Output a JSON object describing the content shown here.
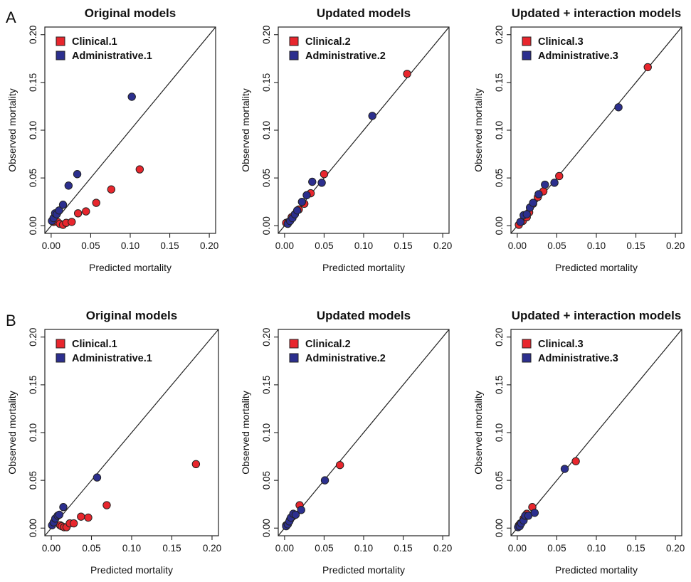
{
  "figure": {
    "panel_labels": [
      "A",
      "B"
    ]
  },
  "colors": {
    "clinical": "#e8262d",
    "administrative": "#2c2f8e",
    "stroke": "#222222"
  },
  "chart_data": [
    {
      "type": "scatter",
      "title": "Original models",
      "xlabel": "Predicted mortality",
      "ylabel": "Observed mortality",
      "xlim": [
        0,
        0.2
      ],
      "ylim": [
        0,
        0.2
      ],
      "xticks": [
        "0.00",
        "0.05",
        "0.10",
        "0.15",
        "0.20"
      ],
      "yticks": [
        "0.00",
        "0.05",
        "0.10",
        "0.15",
        "0.20"
      ],
      "reference_line": "y = x",
      "legend": "top-left",
      "series": [
        {
          "name": "Clinical.1",
          "color": "#e8262d",
          "x": [
            0.003,
            0.008,
            0.011,
            0.015,
            0.019,
            0.026,
            0.034,
            0.044,
            0.057,
            0.076,
            0.112
          ],
          "y": [
            0.004,
            0.004,
            0.002,
            0.001,
            0.003,
            0.004,
            0.013,
            0.015,
            0.024,
            0.038,
            0.059
          ]
        },
        {
          "name": "Administrative.1",
          "color": "#2c2f8e",
          "x": [
            0.001,
            0.003,
            0.005,
            0.007,
            0.01,
            0.015,
            0.022,
            0.033,
            0.102
          ],
          "y": [
            0.005,
            0.008,
            0.013,
            0.012,
            0.016,
            0.022,
            0.042,
            0.054,
            0.135
          ]
        }
      ]
    },
    {
      "type": "scatter",
      "title": "Updated models",
      "xlabel": "Predicted mortality",
      "ylabel": "Observed mortality",
      "xlim": [
        0,
        0.2
      ],
      "ylim": [
        0,
        0.2
      ],
      "xticks": [
        "0.00",
        "0.05",
        "0.10",
        "0.15",
        "0.20"
      ],
      "yticks": [
        "0.00",
        "0.05",
        "0.10",
        "0.15",
        "0.20"
      ],
      "reference_line": "y = x",
      "legend": "top-left",
      "series": [
        {
          "name": "Clinical.2",
          "color": "#e8262d",
          "x": [
            0.002,
            0.005,
            0.009,
            0.013,
            0.018,
            0.025,
            0.033,
            0.05,
            0.155
          ],
          "y": [
            0.003,
            0.004,
            0.009,
            0.012,
            0.017,
            0.023,
            0.034,
            0.054,
            0.159
          ]
        },
        {
          "name": "Administrative.2",
          "color": "#2c2f8e",
          "x": [
            0.004,
            0.007,
            0.01,
            0.013,
            0.016,
            0.022,
            0.028,
            0.035,
            0.047,
            0.111
          ],
          "y": [
            0.002,
            0.005,
            0.008,
            0.012,
            0.016,
            0.025,
            0.032,
            0.046,
            0.045,
            0.115
          ]
        }
      ]
    },
    {
      "type": "scatter",
      "title": "Updated + interaction models",
      "xlabel": "Predicted mortality",
      "ylabel": "Observed mortality",
      "xlim": [
        0,
        0.2
      ],
      "ylim": [
        0,
        0.2
      ],
      "xticks": [
        "0.00",
        "0.05",
        "0.10",
        "0.15",
        "0.20"
      ],
      "yticks": [
        "0.00",
        "0.05",
        "0.10",
        "0.15",
        "0.20"
      ],
      "reference_line": "y = x",
      "legend": "top-left",
      "series": [
        {
          "name": "Clinical.3",
          "color": "#e8262d",
          "x": [
            0.002,
            0.007,
            0.012,
            0.015,
            0.02,
            0.026,
            0.033,
            0.053,
            0.165
          ],
          "y": [
            0.001,
            0.005,
            0.009,
            0.014,
            0.023,
            0.03,
            0.036,
            0.052,
            0.166
          ]
        },
        {
          "name": "Administrative.3",
          "color": "#2c2f8e",
          "x": [
            0.004,
            0.008,
            0.012,
            0.016,
            0.02,
            0.027,
            0.035,
            0.047,
            0.128
          ],
          "y": [
            0.004,
            0.011,
            0.012,
            0.019,
            0.024,
            0.033,
            0.043,
            0.045,
            0.124
          ]
        }
      ]
    },
    {
      "type": "scatter",
      "title": "Original models",
      "xlabel": "Predicted mortality",
      "ylabel": "Observed mortality",
      "xlim": [
        0,
        0.2
      ],
      "ylim": [
        0,
        0.2
      ],
      "xticks": [
        "0.00",
        "0.05",
        "0.10",
        "0.15",
        "0.20"
      ],
      "yticks": [
        "0.00",
        "0.05",
        "0.10",
        "0.15",
        "0.20"
      ],
      "reference_line": "y = x",
      "legend": "top-left",
      "series": [
        {
          "name": "Clinical.1",
          "color": "#e8262d",
          "x": [
            0.011,
            0.013,
            0.016,
            0.019,
            0.023,
            0.028,
            0.037,
            0.046,
            0.069,
            0.18
          ],
          "y": [
            0.003,
            0.002,
            0.001,
            0.001,
            0.005,
            0.005,
            0.012,
            0.011,
            0.024,
            0.067
          ]
        },
        {
          "name": "Administrative.1",
          "color": "#2c2f8e",
          "x": [
            0.001,
            0.003,
            0.005,
            0.008,
            0.01,
            0.015,
            0.057
          ],
          "y": [
            0.003,
            0.006,
            0.01,
            0.013,
            0.014,
            0.022,
            0.053
          ]
        }
      ]
    },
    {
      "type": "scatter",
      "title": "Updated models",
      "xlabel": "Predicted mortality",
      "ylabel": "Observed mortality",
      "xlim": [
        0,
        0.2
      ],
      "ylim": [
        0,
        0.2
      ],
      "xticks": [
        "0.00",
        "0.05",
        "0.10",
        "0.15",
        "0.20"
      ],
      "yticks": [
        "0.00",
        "0.05",
        "0.10",
        "0.15",
        "0.20"
      ],
      "reference_line": "y = x",
      "legend": "top-left",
      "series": [
        {
          "name": "Clinical.2",
          "color": "#e8262d",
          "x": [
            0.002,
            0.004,
            0.007,
            0.01,
            0.013,
            0.019,
            0.07
          ],
          "y": [
            0.003,
            0.004,
            0.009,
            0.012,
            0.014,
            0.024,
            0.066
          ]
        },
        {
          "name": "Administrative.2",
          "color": "#2c2f8e",
          "x": [
            0.002,
            0.004,
            0.006,
            0.008,
            0.011,
            0.014,
            0.021,
            0.051
          ],
          "y": [
            0.002,
            0.004,
            0.007,
            0.011,
            0.015,
            0.014,
            0.019,
            0.05
          ]
        }
      ]
    },
    {
      "type": "scatter",
      "title": "Updated + interaction models",
      "xlabel": "Predicted mortality",
      "ylabel": "Observed mortality",
      "xlim": [
        0,
        0.2
      ],
      "ylim": [
        0,
        0.2
      ],
      "xticks": [
        "0.00",
        "0.05",
        "0.10",
        "0.15",
        "0.20"
      ],
      "yticks": [
        "0.00",
        "0.05",
        "0.10",
        "0.15",
        "0.20"
      ],
      "reference_line": "y = x",
      "legend": "top-left",
      "series": [
        {
          "name": "Clinical.3",
          "color": "#e8262d",
          "x": [
            0.002,
            0.004,
            0.008,
            0.012,
            0.019,
            0.074
          ],
          "y": [
            0.003,
            0.005,
            0.01,
            0.015,
            0.022,
            0.07
          ]
        },
        {
          "name": "Administrative.3",
          "color": "#2c2f8e",
          "x": [
            0.001,
            0.003,
            0.005,
            0.008,
            0.01,
            0.014,
            0.022,
            0.06
          ],
          "y": [
            0.001,
            0.002,
            0.005,
            0.008,
            0.013,
            0.013,
            0.016,
            0.062
          ]
        }
      ]
    }
  ]
}
